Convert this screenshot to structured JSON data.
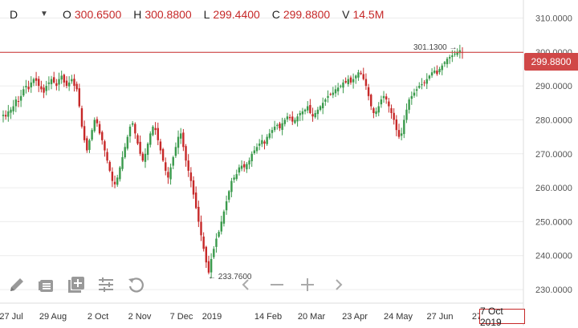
{
  "header": {
    "interval": "D",
    "caret_icon": "triangle-down-icon",
    "open_label": "O",
    "open_value": "300.6500",
    "high_label": "H",
    "high_value": "300.8800",
    "low_label": "L",
    "low_value": "299.4400",
    "close_label": "C",
    "close_value": "299.8800",
    "volume_label": "V",
    "volume_value": "14.5M"
  },
  "current_price_tag": "299.8800",
  "hover_date_tag": "7 Oct 2019",
  "annotations": {
    "high_marker": "301.1300",
    "low_marker": "233.7600"
  },
  "toolbar": {
    "icons": [
      "pencil-icon",
      "indicator-list-icon",
      "add-chart-icon",
      "settings-sliders-icon",
      "reset-icon"
    ]
  },
  "navigation": {
    "icons": [
      "chevron-left-icon",
      "zoom-out-icon",
      "zoom-in-icon",
      "chevron-right-icon"
    ]
  },
  "colors": {
    "up": "#3a9a4c",
    "down": "#c62828",
    "price_line": "#d04848",
    "grid": "#ececec",
    "axis_text": "#555555"
  },
  "chart_data": {
    "type": "candlestick",
    "ylim": [
      226,
      312
    ],
    "y_ticks": [
      "310.0000",
      "300.0000",
      "290.0000",
      "280.0000",
      "270.0000",
      "260.0000",
      "250.0000",
      "240.0000",
      "230.0000"
    ],
    "y_tick_values": [
      310,
      300,
      290,
      280,
      270,
      260,
      250,
      240,
      230
    ],
    "x_ticks": [
      "27 Jul",
      "29 Aug",
      "2 Oct",
      "2 Nov",
      "7 Dec",
      "2019",
      "14 Feb",
      "20 Mar",
      "23 Apr",
      "24 May",
      "27 Jun",
      "27"
    ],
    "close_trend": [
      281.5,
      281,
      282.5,
      283,
      284,
      286,
      285.5,
      287,
      289,
      290,
      289,
      291,
      292,
      291.5,
      290,
      289,
      288,
      290,
      291,
      292,
      291,
      290,
      292,
      293,
      291,
      290,
      291,
      292,
      290,
      289,
      284,
      278,
      274,
      271,
      274,
      277,
      280,
      279,
      276,
      274,
      271,
      268,
      265,
      262,
      261,
      263,
      266,
      269,
      272,
      275,
      278,
      279,
      276,
      273,
      270,
      268,
      270,
      273,
      276,
      278,
      277,
      274,
      271,
      268,
      265,
      263,
      266,
      269,
      272,
      275,
      276,
      272,
      268,
      265,
      262,
      258,
      254,
      250,
      246,
      242,
      238,
      235,
      239,
      242,
      245,
      247,
      250,
      253,
      256,
      259,
      262,
      263,
      264,
      266,
      266.5,
      266,
      267,
      268,
      270,
      271,
      272,
      273,
      274,
      273,
      275,
      276,
      277,
      278,
      278.5,
      277.5,
      279,
      280,
      281,
      280.5,
      279.5,
      280,
      281,
      282,
      282.5,
      283,
      284,
      282,
      281,
      282,
      283,
      284,
      285,
      286,
      287,
      287.5,
      288,
      289,
      289.5,
      290,
      291,
      291,
      292,
      291,
      292,
      293,
      294,
      293.5,
      292,
      290,
      287,
      284,
      282,
      282.5,
      284,
      286,
      287,
      286,
      284,
      282,
      280,
      277,
      275,
      276,
      280,
      283,
      286,
      287,
      288,
      289,
      290,
      290.5,
      291,
      292,
      293,
      294,
      294.5,
      293.5,
      295,
      296,
      297,
      298,
      298.5,
      299,
      299.5,
      300,
      300.5,
      299.9
    ],
    "high_marker_value": 301.13,
    "low_marker_value": 233.76,
    "last_close": 299.88
  }
}
